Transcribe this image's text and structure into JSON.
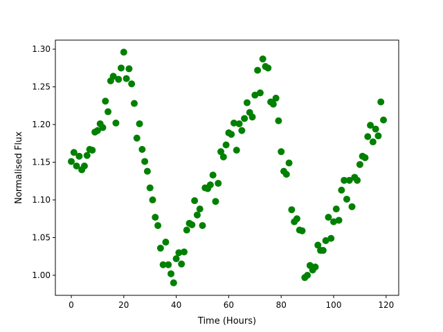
{
  "chart_data": {
    "type": "scatter",
    "title": "",
    "xlabel": "Time (Hours)",
    "ylabel": "Normalised Flux",
    "xlim": [
      -6.07,
      124.8
    ],
    "ylim": [
      0.9734,
      1.312
    ],
    "xticks": [
      0,
      20,
      40,
      60,
      80,
      100,
      120
    ],
    "yticks": [
      "1.00",
      "1.05",
      "1.10",
      "1.15",
      "1.20",
      "1.25",
      "1.30"
    ],
    "grid": false,
    "color": "#008000",
    "series": [
      {
        "x": [
          0,
          1,
          2,
          3,
          4,
          5,
          6,
          7,
          8,
          9,
          10,
          11,
          12,
          13,
          14,
          15,
          16,
          17,
          18,
          19,
          20,
          21,
          22,
          23,
          24,
          25,
          26,
          27,
          28,
          29,
          30,
          31,
          32,
          33,
          34,
          35,
          36,
          37,
          38,
          39,
          40,
          41,
          42,
          43,
          44,
          45,
          46,
          47,
          48,
          49,
          50,
          51,
          52,
          53,
          54,
          55,
          56,
          57,
          58,
          59,
          60,
          61,
          62,
          63,
          64,
          65,
          66,
          67,
          68,
          69,
          70,
          71,
          72,
          73,
          74,
          75,
          76,
          77,
          78,
          79,
          80,
          81,
          82,
          83,
          84,
          85,
          86,
          87,
          88,
          89,
          90,
          91,
          92,
          93,
          94,
          95,
          96,
          97,
          98,
          99,
          100,
          101,
          102,
          103,
          104,
          105,
          106,
          107,
          108,
          109,
          110,
          111,
          112,
          113,
          114,
          115,
          116,
          117,
          118,
          119
        ],
        "y": [
          1.151,
          1.163,
          1.145,
          1.158,
          1.14,
          1.145,
          1.159,
          1.167,
          1.166,
          1.19,
          1.192,
          1.201,
          1.196,
          1.231,
          1.217,
          1.258,
          1.264,
          1.202,
          1.26,
          1.275,
          1.296,
          1.261,
          1.274,
          1.254,
          1.228,
          1.182,
          1.201,
          1.167,
          1.151,
          1.138,
          1.116,
          1.1,
          1.077,
          1.066,
          1.036,
          1.014,
          1.044,
          1.014,
          1.002,
          0.99,
          1.022,
          1.03,
          1.015,
          1.031,
          1.06,
          1.069,
          1.067,
          1.099,
          1.08,
          1.088,
          1.066,
          1.116,
          1.115,
          1.12,
          1.133,
          1.098,
          1.122,
          1.164,
          1.157,
          1.173,
          1.189,
          1.187,
          1.202,
          1.166,
          1.201,
          1.192,
          1.208,
          1.229,
          1.216,
          1.21,
          1.239,
          1.272,
          1.242,
          1.287,
          1.277,
          1.275,
          1.23,
          1.227,
          1.235,
          1.205,
          1.164,
          1.138,
          1.134,
          1.149,
          1.087,
          1.071,
          1.075,
          1.06,
          1.059,
          0.997,
          1.0,
          1.013,
          1.007,
          1.011,
          1.04,
          1.033,
          1.033,
          1.046,
          1.077,
          1.049,
          1.071,
          1.088,
          1.073,
          1.113,
          1.126,
          1.101,
          1.126,
          1.091,
          1.13,
          1.126,
          1.147,
          1.158,
          1.156,
          1.184,
          1.199,
          1.177,
          1.194,
          1.185,
          1.23,
          1.206
        ]
      }
    ]
  }
}
